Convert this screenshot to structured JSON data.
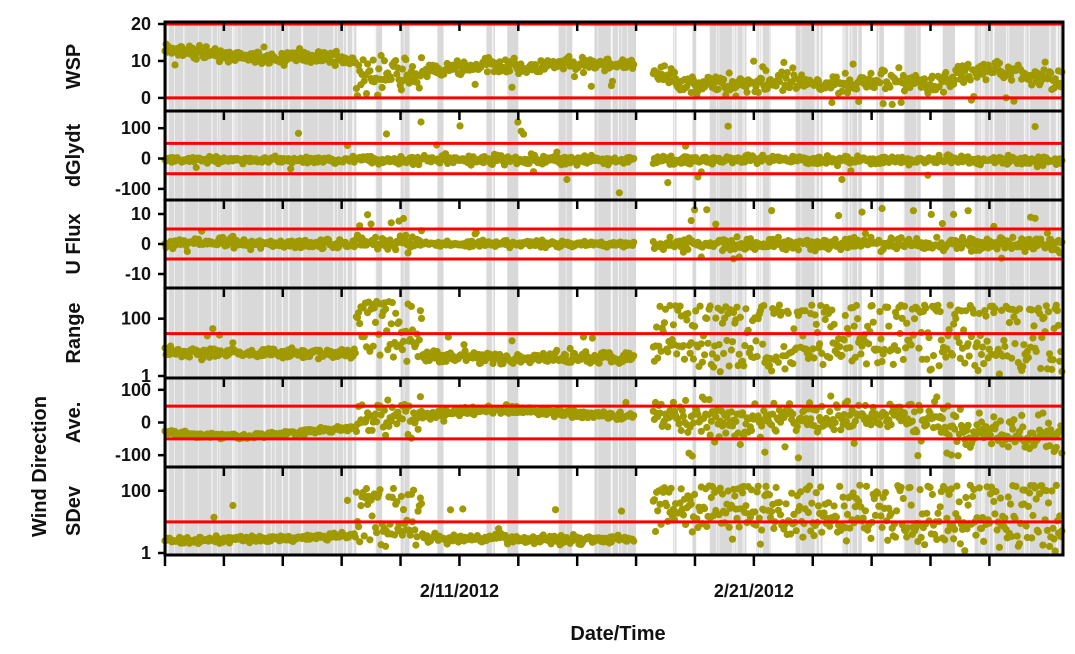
{
  "chart_data": {
    "type": "scatter",
    "xlabel": "Date/Time",
    "x_range": [
      "2012-02-01T00:00",
      "2012-03-02T12:00"
    ],
    "x_ticklabels": [
      {
        "date": "2012-02-11",
        "label": "2/11/2012"
      },
      {
        "date": "2012-02-21",
        "label": "2/21/2012"
      }
    ],
    "x_major_ticks": [
      "2012-02-01T00:00",
      "2012-02-03T00:00",
      "2012-02-05T00:00",
      "2012-02-07T00:00",
      "2012-02-09T00:00",
      "2012-02-11T00:00",
      "2012-02-13T00:00",
      "2012-02-15T00:00",
      "2012-02-17T00:00",
      "2012-02-19T00:00",
      "2012-02-21T00:00",
      "2012-02-23T00:00",
      "2012-02-25T00:00",
      "2012-02-27T00:00",
      "2012-02-29T00:00"
    ],
    "shading": {
      "color": "#d9d9d9",
      "description_hidden": false,
      "periods": [
        [
          "2012-01-31T12:00",
          "2012-02-07T12:00"
        ],
        [
          "2012-02-08T03:00",
          "2012-02-08T09:00"
        ],
        [
          "2012-02-09T00:00",
          "2012-02-09T08:00"
        ],
        [
          "2012-02-10T06:00",
          "2012-02-10T11:00"
        ],
        [
          "2012-02-11T22:00",
          "2012-02-12T05:00"
        ],
        [
          "2012-02-12T15:00",
          "2012-02-13T00:00"
        ],
        [
          "2012-02-14T08:00",
          "2012-02-14T20:00"
        ],
        [
          "2012-02-15T14:00",
          "2012-02-17T06:00"
        ],
        [
          "2012-02-18T06:00",
          "2012-02-18T09:00"
        ],
        [
          "2012-02-18T22:00",
          "2012-02-19T01:00"
        ],
        [
          "2012-02-19T12:00",
          "2012-02-20T18:00"
        ],
        [
          "2012-02-21T02:00",
          "2012-02-21T14:00"
        ],
        [
          "2012-02-22T10:00",
          "2012-02-23T08:00"
        ],
        [
          "2012-02-24T00:00",
          "2012-02-24T16:00"
        ],
        [
          "2012-02-25T04:00",
          "2012-02-25T10:00"
        ],
        [
          "2012-02-26T02:00",
          "2012-02-26T16:00"
        ],
        [
          "2012-02-27T10:00",
          "2012-02-27T20:00"
        ],
        [
          "2012-02-28T12:00",
          "2012-03-02T12:00"
        ]
      ]
    },
    "gap": [
      "2012-02-17T00:00",
      "2012-02-17T14:00"
    ],
    "marker_color": "#a09a00",
    "threshold_color": "#ff0000",
    "panels": [
      {
        "label": [
          "WSP"
        ],
        "scale": "linear",
        "ylim": [
          -3,
          20
        ],
        "yticks": [
          {
            "v": 0,
            "label": "0"
          },
          {
            "v": 10,
            "label": "10"
          },
          {
            "v": 20,
            "label": "20"
          }
        ],
        "thresholds": [
          0,
          20
        ],
        "series": {
          "name": "",
          "segments": [
            {
              "from": "2012-02-01T00:00",
              "to": "2012-02-07T12:00",
              "base": [
                13,
                12.5,
                11.5,
                11,
                10.5,
                11.5,
                11,
                10
              ],
              "noise": 0.8,
              "spikes": 0.02,
              "spike_range": [
                8,
                15
              ]
            },
            {
              "from": "2012-02-07T12:00",
              "to": "2012-02-09T18:00",
              "base": [
                6,
                5,
                7,
                5
              ],
              "noise": 2.0,
              "spikes": 0.25,
              "spike_range": [
                0,
                12
              ]
            },
            {
              "from": "2012-02-09T18:00",
              "to": "2012-02-16T23:00",
              "base": [
                7,
                8,
                9,
                8,
                9,
                9,
                8.5
              ],
              "noise": 0.9,
              "spikes": 0.08,
              "spike_range": [
                2,
                10
              ]
            },
            {
              "from": "2012-02-17T14:00",
              "to": "2012-03-02T12:00",
              "base": [
                7,
                4,
                3,
                4,
                4,
                3.5,
                4,
                4.5,
                5,
                4,
                7,
                8,
                6,
                5
              ],
              "noise": 1.2,
              "spikes": 0.15,
              "spike_range": [
                -2,
                10
              ]
            }
          ]
        }
      },
      {
        "label": [
          "dGlydt"
        ],
        "scale": "linear",
        "ylim": [
          -130,
          150
        ],
        "yticks": [
          {
            "v": -100,
            "label": "-100"
          },
          {
            "v": 0,
            "label": "0"
          },
          {
            "v": 100,
            "label": "100"
          }
        ],
        "thresholds": [
          -50,
          50
        ],
        "series": {
          "name": "",
          "segments": [
            {
              "from": "2012-02-01T00:00",
              "to": "2012-02-07T12:00",
              "base": [
                -5,
                -5,
                -5,
                -5
              ],
              "noise": 5,
              "spikes": 0.02,
              "spike_range": [
                -90,
                90
              ]
            },
            {
              "from": "2012-02-07T12:00",
              "to": "2012-02-16T23:00",
              "base": [
                -5,
                -5,
                -5,
                -5
              ],
              "noise": 8,
              "spikes": 0.05,
              "spike_range": [
                -120,
                140
              ]
            },
            {
              "from": "2012-02-17T14:00",
              "to": "2012-03-02T12:00",
              "base": [
                -5,
                -5,
                -5,
                -5
              ],
              "noise": 7,
              "spikes": 0.05,
              "spike_range": [
                -100,
                110
              ]
            }
          ]
        }
      },
      {
        "label": [
          "U Flux"
        ],
        "scale": "linear",
        "ylim": [
          -14,
          14
        ],
        "yticks": [
          {
            "v": -10,
            "label": "-10"
          },
          {
            "v": 0,
            "label": "0"
          },
          {
            "v": 10,
            "label": "10"
          }
        ],
        "thresholds": [
          -5,
          5
        ],
        "series": {
          "name": "",
          "segments": [
            {
              "from": "2012-02-01T00:00",
              "to": "2012-02-07T12:00",
              "base": [
                0,
                0.5,
                0,
                0
              ],
              "noise": 0.8,
              "spikes": 0.02,
              "spike_range": [
                -3,
                5
              ]
            },
            {
              "from": "2012-02-07T12:00",
              "to": "2012-02-09T18:00",
              "base": [
                1,
                0,
                0.5
              ],
              "noise": 1.2,
              "spikes": 0.2,
              "spike_range": [
                -2,
                12
              ]
            },
            {
              "from": "2012-02-09T18:00",
              "to": "2012-02-16T23:00",
              "base": [
                0,
                0,
                0
              ],
              "noise": 0.5,
              "spikes": 0.03,
              "spike_range": [
                -3,
                5
              ]
            },
            {
              "from": "2012-02-17T14:00",
              "to": "2012-03-02T12:00",
              "base": [
                0,
                0,
                0,
                0
              ],
              "noise": 1.0,
              "spikes": 0.08,
              "spike_range": [
                -5,
                12
              ]
            }
          ]
        }
      },
      {
        "label": [
          "Range"
        ],
        "scale": "log",
        "ylim": [
          1,
          1000
        ],
        "yticks": [
          {
            "v": 1,
            "label": "1"
          },
          {
            "v": 100,
            "label": "100"
          }
        ],
        "thresholds": [
          30
        ],
        "series": {
          "name": "",
          "segments": [
            {
              "from": "2012-02-01T00:00",
              "to": "2012-02-07T12:00",
              "base": [
                7,
                6,
                6,
                6.5
              ],
              "noise": 0.25,
              "spikes": 0.02,
              "spike_range": [
                10,
                100
              ]
            },
            {
              "from": "2012-02-07T12:00",
              "to": "2012-02-09T18:00",
              "base": [
                20,
                10,
                15
              ],
              "noise": 0.9,
              "spikes": 0.45,
              "spike_range": [
                60,
                400
              ]
            },
            {
              "from": "2012-02-09T18:00",
              "to": "2012-02-16T23:00",
              "base": [
                5,
                4.5,
                4,
                4.5,
                5
              ],
              "noise": 0.3,
              "spikes": 0.04,
              "spike_range": [
                8,
                30
              ]
            },
            {
              "from": "2012-02-17T14:00",
              "to": "2012-03-02T12:00",
              "base": [
                10,
                8,
                8,
                10,
                8,
                6,
                5
              ],
              "noise": 1.0,
              "spikes": 0.4,
              "spike_range": [
                40,
                300
              ]
            }
          ]
        }
      },
      {
        "label": [
          "Ave."
        ],
        "scale": "linear",
        "ylim": [
          -130,
          130
        ],
        "yticks": [
          {
            "v": -100,
            "label": "-100"
          },
          {
            "v": 0,
            "label": "0"
          },
          {
            "v": 100,
            "label": "100"
          }
        ],
        "thresholds": [
          -50,
          50
        ],
        "series": {
          "name": "",
          "segments": [
            {
              "from": "2012-02-01T00:00",
              "to": "2012-02-07T12:00",
              "base": [
                -28,
                -40,
                -42,
                -35,
                -25,
                -15
              ],
              "noise": 4,
              "spikes": 0.0,
              "spike_range": [
                0,
                0
              ]
            },
            {
              "from": "2012-02-07T12:00",
              "to": "2012-02-09T18:00",
              "base": [
                10,
                25,
                35
              ],
              "noise": 20,
              "spikes": 0.25,
              "spike_range": [
                -80,
                60
              ]
            },
            {
              "from": "2012-02-09T18:00",
              "to": "2012-02-16T23:00",
              "base": [
                20,
                35,
                40,
                30,
                25,
                20
              ],
              "noise": 6,
              "spikes": 0.03,
              "spike_range": [
                -20,
                70
              ]
            },
            {
              "from": "2012-02-17T14:00",
              "to": "2012-03-02T12:00",
              "base": [
                20,
                10,
                0,
                15,
                20,
                15,
                10,
                -30,
                -40,
                -40
              ],
              "noise": 25,
              "spikes": 0.15,
              "spike_range": [
                -110,
                80
              ]
            }
          ]
        }
      },
      {
        "label": [
          "SDev"
        ],
        "scale": "log",
        "ylim": [
          1,
          500
        ],
        "yticks": [
          {
            "v": 1,
            "label": "1"
          },
          {
            "v": 100,
            "label": "100"
          }
        ],
        "thresholds": [
          10
        ],
        "series": {
          "name": "",
          "segments": [
            {
              "from": "2012-02-01T00:00",
              "to": "2012-02-07T12:00",
              "base": [
                2.5,
                2.6,
                2.8,
                3.2,
                3.5
              ],
              "noise": 0.15,
              "spikes": 0.01,
              "spike_range": [
                5,
                60
              ]
            },
            {
              "from": "2012-02-07T12:00",
              "to": "2012-02-09T18:00",
              "base": [
                8,
                5,
                4
              ],
              "noise": 0.9,
              "spikes": 0.4,
              "spike_range": [
                20,
                120
              ]
            },
            {
              "from": "2012-02-09T18:00",
              "to": "2012-02-16T23:00",
              "base": [
                3,
                2.8,
                2.8,
                3
              ],
              "noise": 0.2,
              "spikes": 0.03,
              "spike_range": [
                5,
                30
              ]
            },
            {
              "from": "2012-02-17T14:00",
              "to": "2012-03-02T12:00",
              "base": [
                20,
                15,
                12,
                10,
                8,
                6,
                4
              ],
              "noise": 0.9,
              "spikes": 0.3,
              "spike_range": [
                30,
                150
              ]
            }
          ]
        }
      }
    ],
    "group_labels": [
      {
        "text": "Wind Direction",
        "panels": [
          4,
          5
        ]
      }
    ]
  }
}
